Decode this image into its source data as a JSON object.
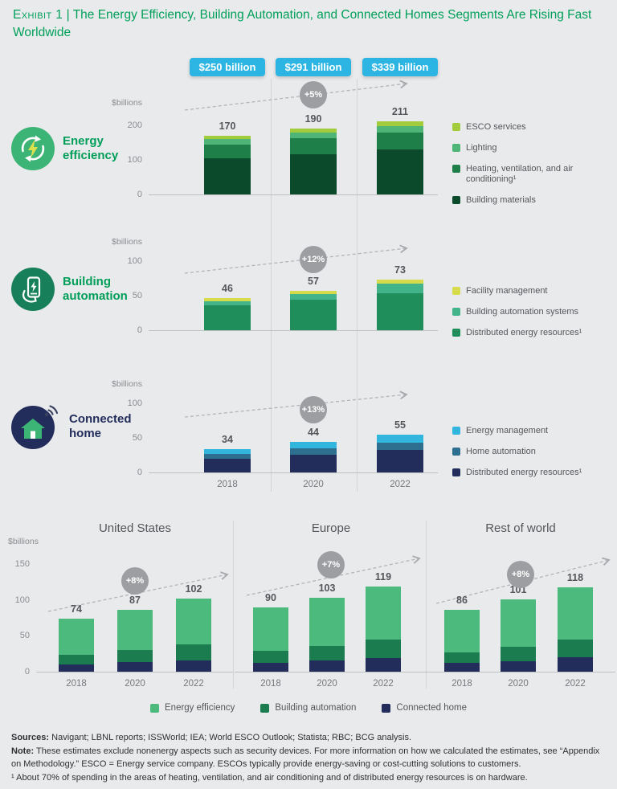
{
  "page": {
    "exhibit_label": "Exhibit 1",
    "separator": " | ",
    "title": "The Energy Efficiency, Building Automation, and Connected Homes Segments Are Rising Fast Worldwide"
  },
  "badges": [
    "$250 billion",
    "$291 billion",
    "$339 billion"
  ],
  "chart_data": [
    {
      "type": "bar",
      "stacked": true,
      "label": "Energy efficiency",
      "axis_label": "$billions",
      "categories": [
        "2018",
        "2020",
        "2022"
      ],
      "totals": [
        170,
        190,
        211
      ],
      "growth": "+5%",
      "yticks": [
        0,
        100,
        200
      ],
      "ylim": [
        0,
        240
      ],
      "series": [
        {
          "name": "Building materials",
          "color": "#0b4b2b",
          "values": [
            105,
            117,
            130
          ]
        },
        {
          "name": "Heating, ventilation, and air conditioning¹",
          "color": "#1e7f49",
          "values": [
            40,
            45,
            50
          ]
        },
        {
          "name": "Lighting",
          "color": "#4eb577",
          "values": [
            15,
            17,
            19
          ]
        },
        {
          "name": "ESCO services",
          "color": "#a3cc3d",
          "values": [
            10,
            11,
            12
          ]
        }
      ]
    },
    {
      "type": "bar",
      "stacked": true,
      "label": "Building automation",
      "axis_label": "$billions",
      "categories": [
        "2018",
        "2020",
        "2022"
      ],
      "totals": [
        46,
        57,
        73
      ],
      "growth": "+12%",
      "yticks": [
        0,
        50,
        100
      ],
      "ylim": [
        0,
        115
      ],
      "series": [
        {
          "name": "Distributed energy resources¹",
          "color": "#1f8e5a",
          "values": [
            36,
            44,
            54
          ]
        },
        {
          "name": "Building automation systems",
          "color": "#43b38a",
          "values": [
            6,
            8,
            13
          ]
        },
        {
          "name": "Facility management",
          "color": "#d6db4b",
          "values": [
            4,
            5,
            6
          ]
        }
      ]
    },
    {
      "type": "bar",
      "stacked": true,
      "label": "Connected home",
      "axis_label": "$billions",
      "categories": [
        "2018",
        "2020",
        "2022"
      ],
      "totals": [
        34,
        44,
        55
      ],
      "growth": "+13%",
      "yticks": [
        0,
        50,
        100
      ],
      "ylim": [
        0,
        115
      ],
      "series": [
        {
          "name": "Distributed energy resources¹",
          "color": "#232d5b",
          "values": [
            20,
            26,
            32
          ]
        },
        {
          "name": "Home automation",
          "color": "#2e6f90",
          "values": [
            7,
            9,
            11
          ]
        },
        {
          "name": "Energy management",
          "color": "#33b6dd",
          "values": [
            7,
            9,
            12
          ]
        }
      ]
    },
    {
      "type": "bar",
      "stacked": true,
      "label": "United States",
      "categories": [
        "2018",
        "2020",
        "2022"
      ],
      "totals": [
        74,
        87,
        102
      ],
      "growth": "+8%",
      "yticks": [
        0,
        50,
        100,
        150
      ],
      "ylim": [
        0,
        165
      ],
      "series": [
        {
          "name": "Connected home",
          "color": "#232d5b",
          "values": [
            10,
            13,
            16
          ]
        },
        {
          "name": "Building automation",
          "color": "#1b7c50",
          "values": [
            14,
            17,
            22
          ]
        },
        {
          "name": "Energy efficiency",
          "color": "#4cba7c",
          "values": [
            50,
            57,
            64
          ]
        }
      ]
    },
    {
      "type": "bar",
      "stacked": true,
      "label": "Europe",
      "categories": [
        "2018",
        "2020",
        "2022"
      ],
      "totals": [
        90,
        103,
        119
      ],
      "growth": "+7%",
      "yticks": [
        0,
        50,
        100,
        150
      ],
      "ylim": [
        0,
        165
      ],
      "series": [
        {
          "name": "Connected home",
          "color": "#232d5b",
          "values": [
            12,
            16,
            19
          ]
        },
        {
          "name": "Building automation",
          "color": "#1b7c50",
          "values": [
            17,
            20,
            26
          ]
        },
        {
          "name": "Energy efficiency",
          "color": "#4cba7c",
          "values": [
            61,
            67,
            74
          ]
        }
      ]
    },
    {
      "type": "bar",
      "stacked": true,
      "label": "Rest of world",
      "categories": [
        "2018",
        "2020",
        "2022"
      ],
      "totals": [
        86,
        101,
        118
      ],
      "growth": "+8%",
      "yticks": [
        0,
        50,
        100,
        150
      ],
      "ylim": [
        0,
        165
      ],
      "series": [
        {
          "name": "Connected home",
          "color": "#232d5b",
          "values": [
            12,
            15,
            20
          ]
        },
        {
          "name": "Building automation",
          "color": "#1b7c50",
          "values": [
            15,
            20,
            25
          ]
        },
        {
          "name": "Energy efficiency",
          "color": "#4cba7c",
          "values": [
            59,
            66,
            73
          ]
        }
      ]
    }
  ],
  "regional": {
    "axis_label": "$billions",
    "legend": [
      {
        "label": "Energy efficiency",
        "color": "#4cba7c"
      },
      {
        "label": "Building automation",
        "color": "#1b7c50"
      },
      {
        "label": "Connected home",
        "color": "#232d5b"
      }
    ]
  },
  "footer": {
    "sources_label": "Sources:",
    "sources": "Navigant; LBNL reports; ISSWorld; IEA; World ESCO Outlook; Statista; RBC; BCG analysis.",
    "note_label": "Note:",
    "note": "These estimates exclude nonenergy aspects such as security devices. For more information on how we calculated the estimates, see “Appendix on Methodology.” ESCO = Energy service company. ESCOs typically provide energy-saving or cost-cutting solutions to customers.",
    "footnote": "¹ About 70% of spending in the areas of heating, ventilation, and air conditioning and of distributed energy resources is on hardware."
  }
}
